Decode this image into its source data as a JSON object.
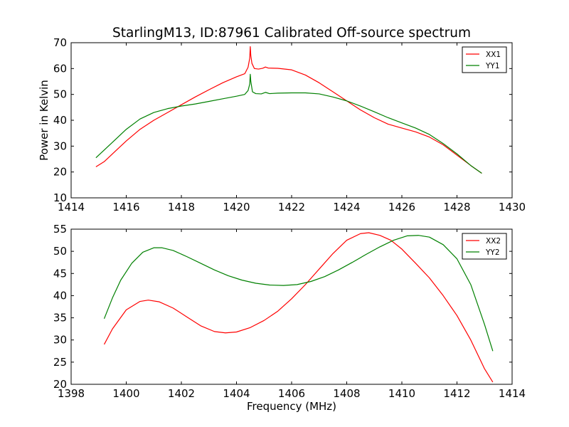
{
  "title": "StarlingM13, ID:87961 Calibrated Off-source spectrum",
  "chart_data": [
    {
      "type": "line",
      "ylabel": "Power in Kelvin",
      "xlabel": "",
      "xlim": [
        1414,
        1430
      ],
      "ylim": [
        10,
        70
      ],
      "xticks": [
        1414,
        1416,
        1418,
        1420,
        1422,
        1424,
        1426,
        1428,
        1430
      ],
      "yticks": [
        10,
        20,
        30,
        40,
        50,
        60,
        70
      ],
      "legend": "top-right",
      "grid": false,
      "series": [
        {
          "name": "XX1",
          "color": "#ff0000",
          "points": [
            [
              1414.9,
              22.0
            ],
            [
              1415.2,
              24.0
            ],
            [
              1415.5,
              27.0
            ],
            [
              1416.0,
              32.0
            ],
            [
              1416.5,
              36.5
            ],
            [
              1417.0,
              40.0
            ],
            [
              1417.5,
              43.0
            ],
            [
              1418.0,
              46.0
            ],
            [
              1418.5,
              49.0
            ],
            [
              1419.0,
              51.8
            ],
            [
              1419.5,
              54.5
            ],
            [
              1420.0,
              56.8
            ],
            [
              1420.3,
              58.0
            ],
            [
              1420.42,
              60.5
            ],
            [
              1420.48,
              64.0
            ],
            [
              1420.5,
              68.5
            ],
            [
              1420.52,
              65.0
            ],
            [
              1420.56,
              62.0
            ],
            [
              1420.65,
              60.0
            ],
            [
              1420.8,
              59.8
            ],
            [
              1420.95,
              60.1
            ],
            [
              1421.05,
              60.6
            ],
            [
              1421.15,
              60.2
            ],
            [
              1421.5,
              60.1
            ],
            [
              1422.0,
              59.5
            ],
            [
              1422.5,
              57.5
            ],
            [
              1423.0,
              54.5
            ],
            [
              1423.5,
              51.0
            ],
            [
              1424.0,
              47.5
            ],
            [
              1424.5,
              44.0
            ],
            [
              1425.0,
              41.0
            ],
            [
              1425.5,
              38.5
            ],
            [
              1426.0,
              37.0
            ],
            [
              1426.5,
              35.5
            ],
            [
              1427.0,
              33.5
            ],
            [
              1427.5,
              30.5
            ],
            [
              1428.0,
              26.5
            ],
            [
              1428.5,
              22.5
            ],
            [
              1428.9,
              19.5
            ]
          ]
        },
        {
          "name": "YY1",
          "color": "#008000",
          "points": [
            [
              1414.9,
              25.5
            ],
            [
              1415.2,
              28.5
            ],
            [
              1415.5,
              31.5
            ],
            [
              1416.0,
              36.5
            ],
            [
              1416.5,
              40.5
            ],
            [
              1417.0,
              43.0
            ],
            [
              1417.5,
              44.5
            ],
            [
              1418.0,
              45.5
            ],
            [
              1418.5,
              46.3
            ],
            [
              1419.0,
              47.3
            ],
            [
              1419.5,
              48.3
            ],
            [
              1420.0,
              49.3
            ],
            [
              1420.3,
              50.0
            ],
            [
              1420.42,
              51.5
            ],
            [
              1420.48,
              54.0
            ],
            [
              1420.5,
              57.8
            ],
            [
              1420.52,
              55.0
            ],
            [
              1420.58,
              51.0
            ],
            [
              1420.7,
              50.3
            ],
            [
              1420.9,
              50.2
            ],
            [
              1421.05,
              50.8
            ],
            [
              1421.2,
              50.3
            ],
            [
              1421.5,
              50.5
            ],
            [
              1422.0,
              50.6
            ],
            [
              1422.5,
              50.6
            ],
            [
              1423.0,
              50.2
            ],
            [
              1423.5,
              49.0
            ],
            [
              1424.0,
              47.5
            ],
            [
              1424.5,
              45.5
            ],
            [
              1425.0,
              43.3
            ],
            [
              1425.5,
              41.0
            ],
            [
              1426.0,
              39.0
            ],
            [
              1426.5,
              37.0
            ],
            [
              1427.0,
              34.5
            ],
            [
              1427.5,
              31.0
            ],
            [
              1428.0,
              27.0
            ],
            [
              1428.5,
              22.5
            ],
            [
              1428.9,
              19.5
            ]
          ]
        }
      ]
    },
    {
      "type": "line",
      "xlabel": "Frequency (MHz)",
      "ylabel": "",
      "xlim": [
        1398,
        1414
      ],
      "ylim": [
        20,
        55
      ],
      "xticks": [
        1398,
        1400,
        1402,
        1404,
        1406,
        1408,
        1410,
        1412,
        1414
      ],
      "yticks": [
        20,
        25,
        30,
        35,
        40,
        45,
        50,
        55
      ],
      "legend": "top-right",
      "grid": false,
      "series": [
        {
          "name": "XX2",
          "color": "#ff0000",
          "points": [
            [
              1399.2,
              29.0
            ],
            [
              1399.5,
              32.5
            ],
            [
              1400.0,
              36.8
            ],
            [
              1400.5,
              38.7
            ],
            [
              1400.8,
              39.0
            ],
            [
              1401.2,
              38.6
            ],
            [
              1401.7,
              37.2
            ],
            [
              1402.2,
              35.2
            ],
            [
              1402.7,
              33.2
            ],
            [
              1403.2,
              31.9
            ],
            [
              1403.6,
              31.6
            ],
            [
              1404.0,
              31.8
            ],
            [
              1404.5,
              32.8
            ],
            [
              1405.0,
              34.4
            ],
            [
              1405.5,
              36.5
            ],
            [
              1406.0,
              39.3
            ],
            [
              1406.5,
              42.5
            ],
            [
              1407.0,
              46.0
            ],
            [
              1407.5,
              49.5
            ],
            [
              1408.0,
              52.5
            ],
            [
              1408.5,
              54.0
            ],
            [
              1408.8,
              54.2
            ],
            [
              1409.2,
              53.6
            ],
            [
              1409.6,
              52.5
            ],
            [
              1410.0,
              50.5
            ],
            [
              1410.5,
              47.3
            ],
            [
              1411.0,
              44.0
            ],
            [
              1411.5,
              40.0
            ],
            [
              1412.0,
              35.5
            ],
            [
              1412.5,
              30.0
            ],
            [
              1413.0,
              23.5
            ],
            [
              1413.3,
              20.5
            ]
          ]
        },
        {
          "name": "YY2",
          "color": "#008000",
          "points": [
            [
              1399.2,
              34.8
            ],
            [
              1399.5,
              39.5
            ],
            [
              1399.8,
              43.5
            ],
            [
              1400.2,
              47.3
            ],
            [
              1400.6,
              49.8
            ],
            [
              1401.0,
              50.8
            ],
            [
              1401.3,
              50.8
            ],
            [
              1401.7,
              50.2
            ],
            [
              1402.2,
              48.8
            ],
            [
              1402.7,
              47.3
            ],
            [
              1403.2,
              45.8
            ],
            [
              1403.7,
              44.5
            ],
            [
              1404.2,
              43.5
            ],
            [
              1404.7,
              42.8
            ],
            [
              1405.2,
              42.4
            ],
            [
              1405.7,
              42.3
            ],
            [
              1406.2,
              42.5
            ],
            [
              1406.7,
              43.2
            ],
            [
              1407.2,
              44.3
            ],
            [
              1407.7,
              45.8
            ],
            [
              1408.2,
              47.5
            ],
            [
              1408.7,
              49.3
            ],
            [
              1409.2,
              51.0
            ],
            [
              1409.7,
              52.5
            ],
            [
              1410.2,
              53.5
            ],
            [
              1410.6,
              53.6
            ],
            [
              1411.0,
              53.2
            ],
            [
              1411.5,
              51.5
            ],
            [
              1412.0,
              48.3
            ],
            [
              1412.5,
              42.5
            ],
            [
              1413.0,
              33.5
            ],
            [
              1413.3,
              27.5
            ]
          ]
        }
      ]
    }
  ]
}
